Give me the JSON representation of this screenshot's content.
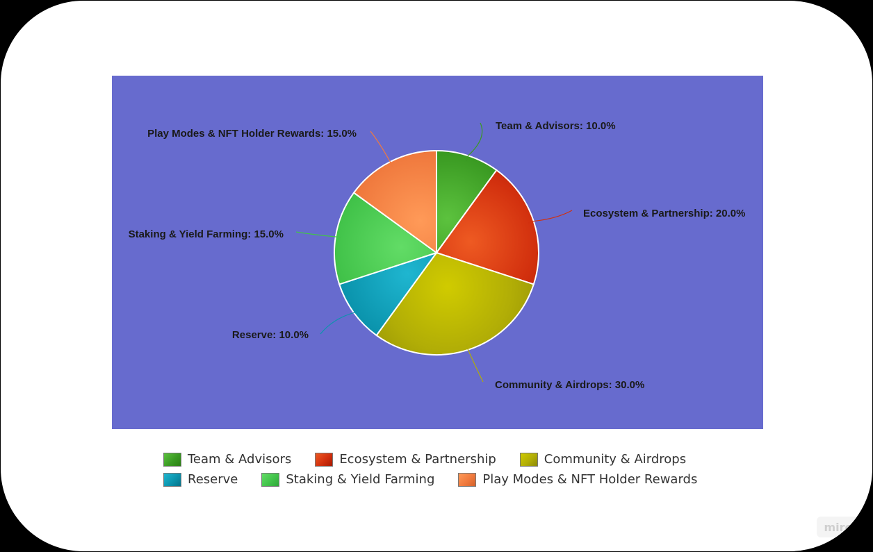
{
  "colors": {
    "plot_background": "#676bce",
    "slice_border": "#ffffff"
  },
  "watermark": "miro",
  "chart_data": {
    "type": "pie",
    "title": "",
    "legend_position": "bottom",
    "slices": [
      {
        "name": "Team & Advisors",
        "value": 10.0,
        "label": "Team & Advisors: 10.0%",
        "color": "#3a9a22",
        "light": "#5cc23e",
        "dark": "#2a7f12"
      },
      {
        "name": "Ecosystem & Partnership",
        "value": 20.0,
        "label": "Ecosystem & Partnership: 20.0%",
        "color": "#d2300e",
        "light": "#ee5a22",
        "dark": "#a81a02"
      },
      {
        "name": "Community & Airdrops",
        "value": 30.0,
        "label": "Community & Airdrops: 30.0%",
        "color": "#b1ad06",
        "light": "#d0cb00",
        "dark": "#8c8a08"
      },
      {
        "name": "Reserve",
        "value": 10.0,
        "label": "Reserve: 10.0%",
        "color": "#0b94ad",
        "light": "#1fb6d0",
        "dark": "#05738a"
      },
      {
        "name": "Staking & Yield Farming",
        "value": 15.0,
        "label": "Staking & Yield Farming: 15.0%",
        "color": "#42c34a",
        "light": "#62dc66",
        "dark": "#2fa83a"
      },
      {
        "name": "Play Modes & NFT Holder Rewards",
        "value": 15.0,
        "label": "Play Modes & NFT Holder Rewards: 15.0%",
        "color": "#f07a3e",
        "light": "#ff9a58",
        "dark": "#d4622a"
      }
    ]
  }
}
